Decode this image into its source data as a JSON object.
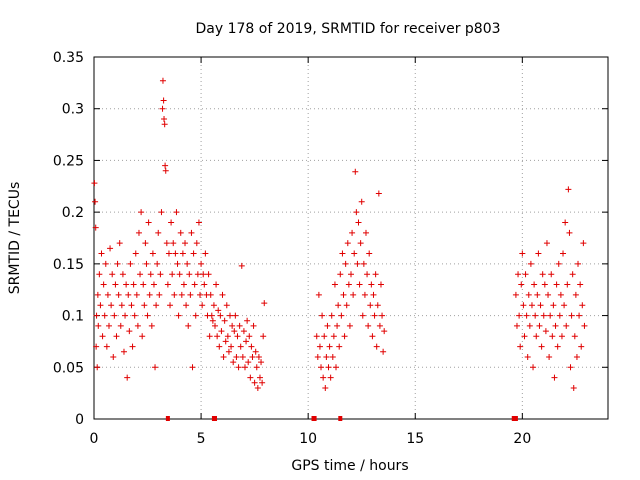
{
  "chart_data": {
    "type": "scatter",
    "title": "Day 178 of 2019, SRMTID for receiver p803",
    "xlabel": "GPS time / hours",
    "ylabel": "SRMTID / TECUs",
    "xlim": [
      0,
      24
    ],
    "ylim": [
      0,
      0.35
    ],
    "grid": true,
    "marker": "+",
    "marker_color": "#e00000",
    "x_ticks": [
      {
        "value": 0,
        "label": "0"
      },
      {
        "value": 5,
        "label": "5"
      },
      {
        "value": 10,
        "label": "10"
      },
      {
        "value": 15,
        "label": "15"
      },
      {
        "value": 20,
        "label": "20"
      }
    ],
    "y_ticks": [
      {
        "value": 0,
        "label": "0"
      },
      {
        "value": 0.05,
        "label": "0.05"
      },
      {
        "value": 0.1,
        "label": "0.1"
      },
      {
        "value": 0.15,
        "label": "0.15"
      },
      {
        "value": 0.2,
        "label": "0.2"
      },
      {
        "value": 0.25,
        "label": "0.25"
      },
      {
        "value": 0.3,
        "label": "0.3"
      },
      {
        "value": 0.35,
        "label": "0.35"
      }
    ],
    "series": [
      {
        "name": "SRMTID",
        "points": [
          [
            0.02,
            0.228
          ],
          [
            0.05,
            0.21
          ],
          [
            0.08,
            0.185
          ],
          [
            0.1,
            0.07
          ],
          [
            0.12,
            0.1
          ],
          [
            0.15,
            0.05
          ],
          [
            0.18,
            0.12
          ],
          [
            0.2,
            0.09
          ],
          [
            0.25,
            0.14
          ],
          [
            0.3,
            0.11
          ],
          [
            0.35,
            0.16
          ],
          [
            0.4,
            0.08
          ],
          [
            0.45,
            0.13
          ],
          [
            0.5,
            0.1
          ],
          [
            0.55,
            0.15
          ],
          [
            0.6,
            0.07
          ],
          [
            0.65,
            0.12
          ],
          [
            0.7,
            0.09
          ],
          [
            0.75,
            0.165
          ],
          [
            0.8,
            0.11
          ],
          [
            0.85,
            0.14
          ],
          [
            0.9,
            0.06
          ],
          [
            0.95,
            0.1
          ],
          [
            1.0,
            0.13
          ],
          [
            1.05,
            0.08
          ],
          [
            1.1,
            0.15
          ],
          [
            1.15,
            0.12
          ],
          [
            1.2,
            0.17
          ],
          [
            1.25,
            0.09
          ],
          [
            1.3,
            0.11
          ],
          [
            1.35,
            0.14
          ],
          [
            1.4,
            0.065
          ],
          [
            1.45,
            0.1
          ],
          [
            1.5,
            0.13
          ],
          [
            1.55,
            0.04
          ],
          [
            1.6,
            0.12
          ],
          [
            1.65,
            0.085
          ],
          [
            1.7,
            0.15
          ],
          [
            1.75,
            0.11
          ],
          [
            1.8,
            0.07
          ],
          [
            1.85,
            0.13
          ],
          [
            1.9,
            0.1
          ],
          [
            1.95,
            0.16
          ],
          [
            2.0,
            0.12
          ],
          [
            2.05,
            0.09
          ],
          [
            2.1,
            0.18
          ],
          [
            2.15,
            0.14
          ],
          [
            2.2,
            0.2
          ],
          [
            2.25,
            0.08
          ],
          [
            2.3,
            0.13
          ],
          [
            2.35,
            0.11
          ],
          [
            2.4,
            0.17
          ],
          [
            2.45,
            0.15
          ],
          [
            2.5,
            0.1
          ],
          [
            2.55,
            0.19
          ],
          [
            2.6,
            0.12
          ],
          [
            2.65,
            0.14
          ],
          [
            2.7,
            0.09
          ],
          [
            2.75,
            0.16
          ],
          [
            2.8,
            0.13
          ],
          [
            2.85,
            0.05
          ],
          [
            2.9,
            0.11
          ],
          [
            2.95,
            0.15
          ],
          [
            3.0,
            0.18
          ],
          [
            3.05,
            0.12
          ],
          [
            3.1,
            0.14
          ],
          [
            3.15,
            0.2
          ],
          [
            3.2,
            0.3
          ],
          [
            3.22,
            0.327
          ],
          [
            3.25,
            0.308
          ],
          [
            3.27,
            0.29
          ],
          [
            3.3,
            0.285
          ],
          [
            3.32,
            0.245
          ],
          [
            3.35,
            0.24
          ],
          [
            3.4,
            0.17
          ],
          [
            3.45,
            0.13
          ],
          [
            3.5,
            0.16
          ],
          [
            3.55,
            0.11
          ],
          [
            3.6,
            0.19
          ],
          [
            3.65,
            0.14
          ],
          [
            3.7,
            0.17
          ],
          [
            3.75,
            0.12
          ],
          [
            3.8,
            0.16
          ],
          [
            3.85,
            0.2
          ],
          [
            3.9,
            0.15
          ],
          [
            3.95,
            0.1
          ],
          [
            4.0,
            0.14
          ],
          [
            4.05,
            0.18
          ],
          [
            4.1,
            0.12
          ],
          [
            4.15,
            0.16
          ],
          [
            4.2,
            0.13
          ],
          [
            4.25,
            0.17
          ],
          [
            4.3,
            0.11
          ],
          [
            4.35,
            0.15
          ],
          [
            4.4,
            0.09
          ],
          [
            4.45,
            0.14
          ],
          [
            4.5,
            0.12
          ],
          [
            4.55,
            0.18
          ],
          [
            4.6,
            0.05
          ],
          [
            4.65,
            0.16
          ],
          [
            4.7,
            0.13
          ],
          [
            4.75,
            0.1
          ],
          [
            4.8,
            0.17
          ],
          [
            4.85,
            0.14
          ],
          [
            4.9,
            0.19
          ],
          [
            4.95,
            0.12
          ],
          [
            5.0,
            0.15
          ],
          [
            5.05,
            0.11
          ],
          [
            5.1,
            0.14
          ],
          [
            5.15,
            0.13
          ],
          [
            5.2,
            0.16
          ],
          [
            5.25,
            0.12
          ],
          [
            5.3,
            0.1
          ],
          [
            5.35,
            0.14
          ],
          [
            5.4,
            0.08
          ],
          [
            5.45,
            0.12
          ],
          [
            5.5,
            0.1
          ],
          [
            5.55,
            0.095
          ],
          [
            5.6,
            0.11
          ],
          [
            5.65,
            0.09
          ],
          [
            5.7,
            0.13
          ],
          [
            5.75,
            0.08
          ],
          [
            5.8,
            0.105
          ],
          [
            5.85,
            0.07
          ],
          [
            5.9,
            0.1
          ],
          [
            5.95,
            0.085
          ],
          [
            6.0,
            0.12
          ],
          [
            6.05,
            0.06
          ],
          [
            6.1,
            0.095
          ],
          [
            6.15,
            0.075
          ],
          [
            6.2,
            0.11
          ],
          [
            6.25,
            0.08
          ],
          [
            6.3,
            0.065
          ],
          [
            6.35,
            0.1
          ],
          [
            6.4,
            0.07
          ],
          [
            6.45,
            0.09
          ],
          [
            6.5,
            0.055
          ],
          [
            6.55,
            0.085
          ],
          [
            6.6,
            0.1
          ],
          [
            6.65,
            0.06
          ],
          [
            6.7,
            0.08
          ],
          [
            6.75,
            0.05
          ],
          [
            6.8,
            0.09
          ],
          [
            6.85,
            0.07
          ],
          [
            6.9,
            0.148
          ],
          [
            6.95,
            0.06
          ],
          [
            7.0,
            0.085
          ],
          [
            7.05,
            0.05
          ],
          [
            7.1,
            0.075
          ],
          [
            7.15,
            0.095
          ],
          [
            7.2,
            0.055
          ],
          [
            7.25,
            0.08
          ],
          [
            7.3,
            0.04
          ],
          [
            7.35,
            0.07
          ],
          [
            7.4,
            0.06
          ],
          [
            7.45,
            0.09
          ],
          [
            7.5,
            0.035
          ],
          [
            7.55,
            0.065
          ],
          [
            7.6,
            0.05
          ],
          [
            7.65,
            0.03
          ],
          [
            7.7,
            0.06
          ],
          [
            7.75,
            0.04
          ],
          [
            7.8,
            0.055
          ],
          [
            7.85,
            0.035
          ],
          [
            7.9,
            0.08
          ],
          [
            7.95,
            0.112
          ],
          [
            10.4,
            0.08
          ],
          [
            10.45,
            0.06
          ],
          [
            10.5,
            0.12
          ],
          [
            10.55,
            0.07
          ],
          [
            10.6,
            0.05
          ],
          [
            10.65,
            0.1
          ],
          [
            10.7,
            0.04
          ],
          [
            10.75,
            0.08
          ],
          [
            10.8,
            0.03
          ],
          [
            10.85,
            0.06
          ],
          [
            10.9,
            0.09
          ],
          [
            10.95,
            0.05
          ],
          [
            11.0,
            0.07
          ],
          [
            11.05,
            0.04
          ],
          [
            11.1,
            0.1
          ],
          [
            11.15,
            0.06
          ],
          [
            11.2,
            0.08
          ],
          [
            11.25,
            0.13
          ],
          [
            11.3,
            0.05
          ],
          [
            11.35,
            0.09
          ],
          [
            11.4,
            0.11
          ],
          [
            11.45,
            0.07
          ],
          [
            11.5,
            0.14
          ],
          [
            11.55,
            0.1
          ],
          [
            11.6,
            0.16
          ],
          [
            11.65,
            0.12
          ],
          [
            11.7,
            0.08
          ],
          [
            11.75,
            0.15
          ],
          [
            11.8,
            0.11
          ],
          [
            11.85,
            0.17
          ],
          [
            11.9,
            0.13
          ],
          [
            11.95,
            0.09
          ],
          [
            12.0,
            0.14
          ],
          [
            12.05,
            0.18
          ],
          [
            12.1,
            0.12
          ],
          [
            12.15,
            0.16
          ],
          [
            12.2,
            0.239
          ],
          [
            12.25,
            0.2
          ],
          [
            12.3,
            0.15
          ],
          [
            12.35,
            0.19
          ],
          [
            12.4,
            0.13
          ],
          [
            12.45,
            0.17
          ],
          [
            12.5,
            0.21
          ],
          [
            12.55,
            0.1
          ],
          [
            12.6,
            0.15
          ],
          [
            12.65,
            0.12
          ],
          [
            12.7,
            0.18
          ],
          [
            12.75,
            0.14
          ],
          [
            12.8,
            0.09
          ],
          [
            12.85,
            0.16
          ],
          [
            12.9,
            0.11
          ],
          [
            12.95,
            0.13
          ],
          [
            13.0,
            0.08
          ],
          [
            13.05,
            0.12
          ],
          [
            13.1,
            0.1
          ],
          [
            13.15,
            0.14
          ],
          [
            13.2,
            0.07
          ],
          [
            13.25,
            0.11
          ],
          [
            13.3,
            0.218
          ],
          [
            13.35,
            0.09
          ],
          [
            13.4,
            0.13
          ],
          [
            13.45,
            0.1
          ],
          [
            13.5,
            0.065
          ],
          [
            13.55,
            0.085
          ],
          [
            19.7,
            0.12
          ],
          [
            19.75,
            0.09
          ],
          [
            19.8,
            0.14
          ],
          [
            19.85,
            0.1
          ],
          [
            19.9,
            0.07
          ],
          [
            19.95,
            0.13
          ],
          [
            20.0,
            0.16
          ],
          [
            20.05,
            0.11
          ],
          [
            20.1,
            0.08
          ],
          [
            20.15,
            0.14
          ],
          [
            20.2,
            0.1
          ],
          [
            20.25,
            0.06
          ],
          [
            20.3,
            0.12
          ],
          [
            20.35,
            0.09
          ],
          [
            20.4,
            0.15
          ],
          [
            20.45,
            0.11
          ],
          [
            20.5,
            0.05
          ],
          [
            20.55,
            0.13
          ],
          [
            20.6,
            0.1
          ],
          [
            20.65,
            0.08
          ],
          [
            20.7,
            0.12
          ],
          [
            20.75,
            0.16
          ],
          [
            20.8,
            0.09
          ],
          [
            20.85,
            0.11
          ],
          [
            20.9,
            0.07
          ],
          [
            20.95,
            0.14
          ],
          [
            21.0,
            0.1
          ],
          [
            21.05,
            0.13
          ],
          [
            21.1,
            0.085
          ],
          [
            21.15,
            0.17
          ],
          [
            21.2,
            0.12
          ],
          [
            21.25,
            0.06
          ],
          [
            21.3,
            0.1
          ],
          [
            21.35,
            0.14
          ],
          [
            21.4,
            0.08
          ],
          [
            21.45,
            0.11
          ],
          [
            21.5,
            0.04
          ],
          [
            21.55,
            0.09
          ],
          [
            21.6,
            0.13
          ],
          [
            21.65,
            0.07
          ],
          [
            21.7,
            0.15
          ],
          [
            21.75,
            0.1
          ],
          [
            21.8,
            0.12
          ],
          [
            21.85,
            0.08
          ],
          [
            21.9,
            0.16
          ],
          [
            21.95,
            0.11
          ],
          [
            22.0,
            0.19
          ],
          [
            22.05,
            0.09
          ],
          [
            22.1,
            0.13
          ],
          [
            22.15,
            0.222
          ],
          [
            22.2,
            0.18
          ],
          [
            22.25,
            0.05
          ],
          [
            22.3,
            0.1
          ],
          [
            22.35,
            0.14
          ],
          [
            22.4,
            0.03
          ],
          [
            22.45,
            0.08
          ],
          [
            22.5,
            0.12
          ],
          [
            22.55,
            0.06
          ],
          [
            22.6,
            0.15
          ],
          [
            22.65,
            0.1
          ],
          [
            22.7,
            0.13
          ],
          [
            22.75,
            0.07
          ],
          [
            22.8,
            0.11
          ],
          [
            22.85,
            0.17
          ],
          [
            22.9,
            0.09
          ]
        ],
        "zero_points": [
          3.45,
          5.6,
          5.65,
          10.25,
          10.3,
          11.5,
          19.6,
          19.7
        ]
      }
    ]
  }
}
